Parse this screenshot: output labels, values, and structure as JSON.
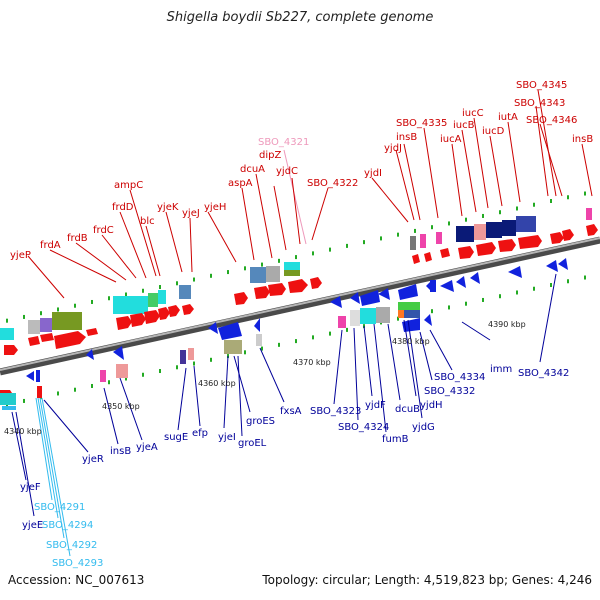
{
  "title": "Shigella boydii Sb227, complete genome",
  "footer": {
    "accession": "Accession: NC_007613",
    "summary": "Topology: circular; Length: 4,519,823 bp; Genes: 4,246"
  },
  "axis_ticks": [
    "4340 kbp",
    "4350 kbp",
    "4360 kbp",
    "4370 kbp",
    "4380 kbp",
    "4390 kbp"
  ],
  "colors": {
    "forward_labels": "#cc0000",
    "reverse_labels": "#000099",
    "pseudo_labels": "#ee99bb",
    "rna_labels": "#33bbee",
    "backbone": "#777777",
    "forward_gene": "#ee1111",
    "reverse_gene": "#1122dd"
  },
  "labels_top": [
    "yjeP",
    "frdA",
    "frdB",
    "frdC",
    "frdD",
    "ampC",
    "blc",
    "yjeK",
    "yjeJ",
    "yjeH",
    "aspA",
    "dcuA",
    "dipZ",
    "yjdC",
    "SBO_4321",
    "SBO_4322",
    "yjdI",
    "yjdJ",
    "insB",
    "SBO_4335",
    "iucA",
    "iucB",
    "iucC",
    "iucD",
    "iutA",
    "SBO_4345",
    "SBO_4343",
    "SBO_4346",
    "insB"
  ],
  "labels_bottom": [
    "yjeF",
    "yjeE",
    "SBO_4291",
    "SBO_4294",
    "SBO_4292",
    "SBO_4293",
    "yjeR",
    "insB",
    "yjeA",
    "sugE",
    "efp",
    "yjeI",
    "groES",
    "groEL",
    "fxsA",
    "SBO_4323",
    "SBO_4324",
    "yjdF",
    "fumB",
    "dcuB",
    "yjdH",
    "yjdG",
    "SBO_4332",
    "SBO_4334",
    "imm",
    "SBO_4342"
  ]
}
